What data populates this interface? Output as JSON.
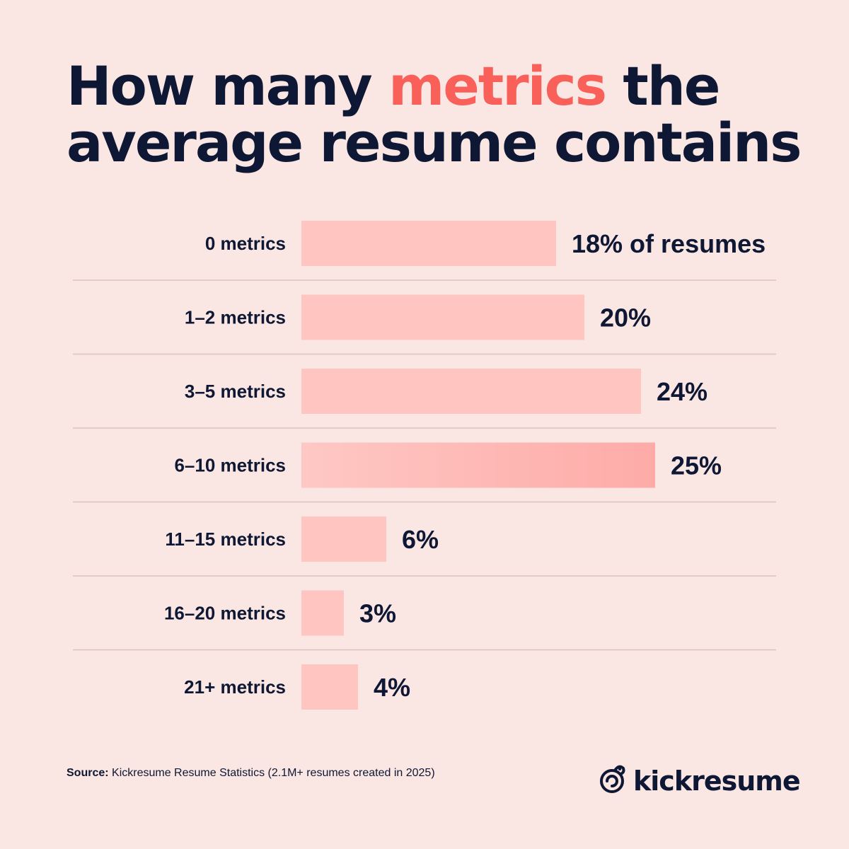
{
  "title": {
    "part1": "How many ",
    "highlight": "metrics",
    "part2": " the average resume contains"
  },
  "colors": {
    "background": "#fae7e3",
    "text": "#0e1733",
    "accent": "#f9605a",
    "bar": "#fec5c1",
    "bar_highlight": "#feaca9",
    "divider": "#d9c3bf"
  },
  "chart_data": {
    "type": "bar",
    "orientation": "horizontal",
    "categories": [
      "0 metrics",
      "1–2 metrics",
      "3–5 metrics",
      "6–10 metrics",
      "11–15 metrics",
      "16–20 metrics",
      "21+ metrics"
    ],
    "values": [
      18,
      20,
      24,
      25,
      6,
      3,
      4
    ],
    "value_labels": [
      "18% of resumes",
      "20%",
      "24%",
      "25%",
      "6%",
      "3%",
      "4%"
    ],
    "highlight_index": 3,
    "unit": "%",
    "grid": false
  },
  "source": {
    "label": "Source:",
    "text": " Kickresume Resume Statistics (2.1M+ resumes created in 2025)"
  },
  "brand": {
    "name": "kickresume",
    "icon": "chameleon-logo-icon"
  }
}
